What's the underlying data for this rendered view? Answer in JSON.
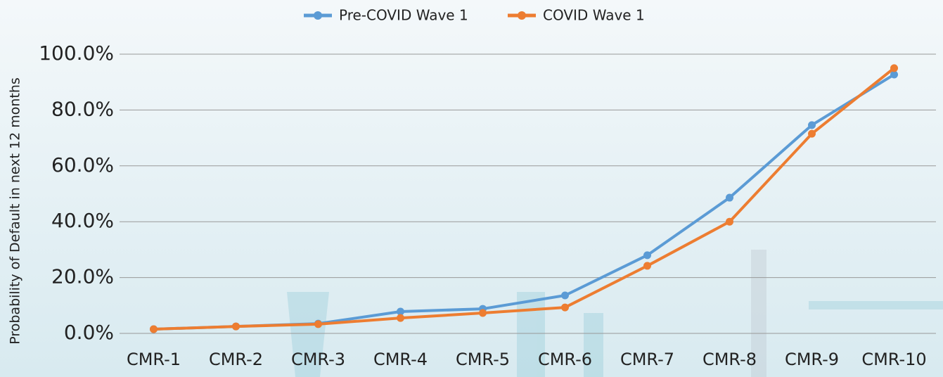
{
  "chart_data": {
    "type": "line",
    "y_axis_label": "Probability of Default in next 12 months",
    "categories": [
      "CMR-1",
      "CMR-2",
      "CMR-3",
      "CMR-4",
      "CMR-5",
      "CMR-6",
      "CMR-7",
      "CMR-8",
      "CMR-9",
      "CMR-10"
    ],
    "series": [
      {
        "name": "Pre-COVID Wave 1",
        "color": "#5b9bd5",
        "values": [
          1.5,
          2.5,
          3.5,
          7.8,
          8.8,
          13.6,
          28,
          48.6,
          74.6,
          92.7
        ]
      },
      {
        "name": "COVID Wave 1",
        "color": "#ed7d31",
        "values": [
          1.5,
          2.5,
          3.3,
          5.5,
          7.3,
          9.3,
          24.2,
          40,
          71.5,
          95
        ]
      }
    ],
    "ylim": [
      0,
      100
    ],
    "yticks": [
      {
        "value": 0,
        "label": "0.0%"
      },
      {
        "value": 20,
        "label": "20.0%"
      },
      {
        "value": 40,
        "label": "40.0%"
      },
      {
        "value": 60,
        "label": "60.0%"
      },
      {
        "value": 80,
        "label": "80.0%"
      },
      {
        "value": 100,
        "label": "100.0%"
      }
    ],
    "grid": true,
    "legend": "top"
  }
}
